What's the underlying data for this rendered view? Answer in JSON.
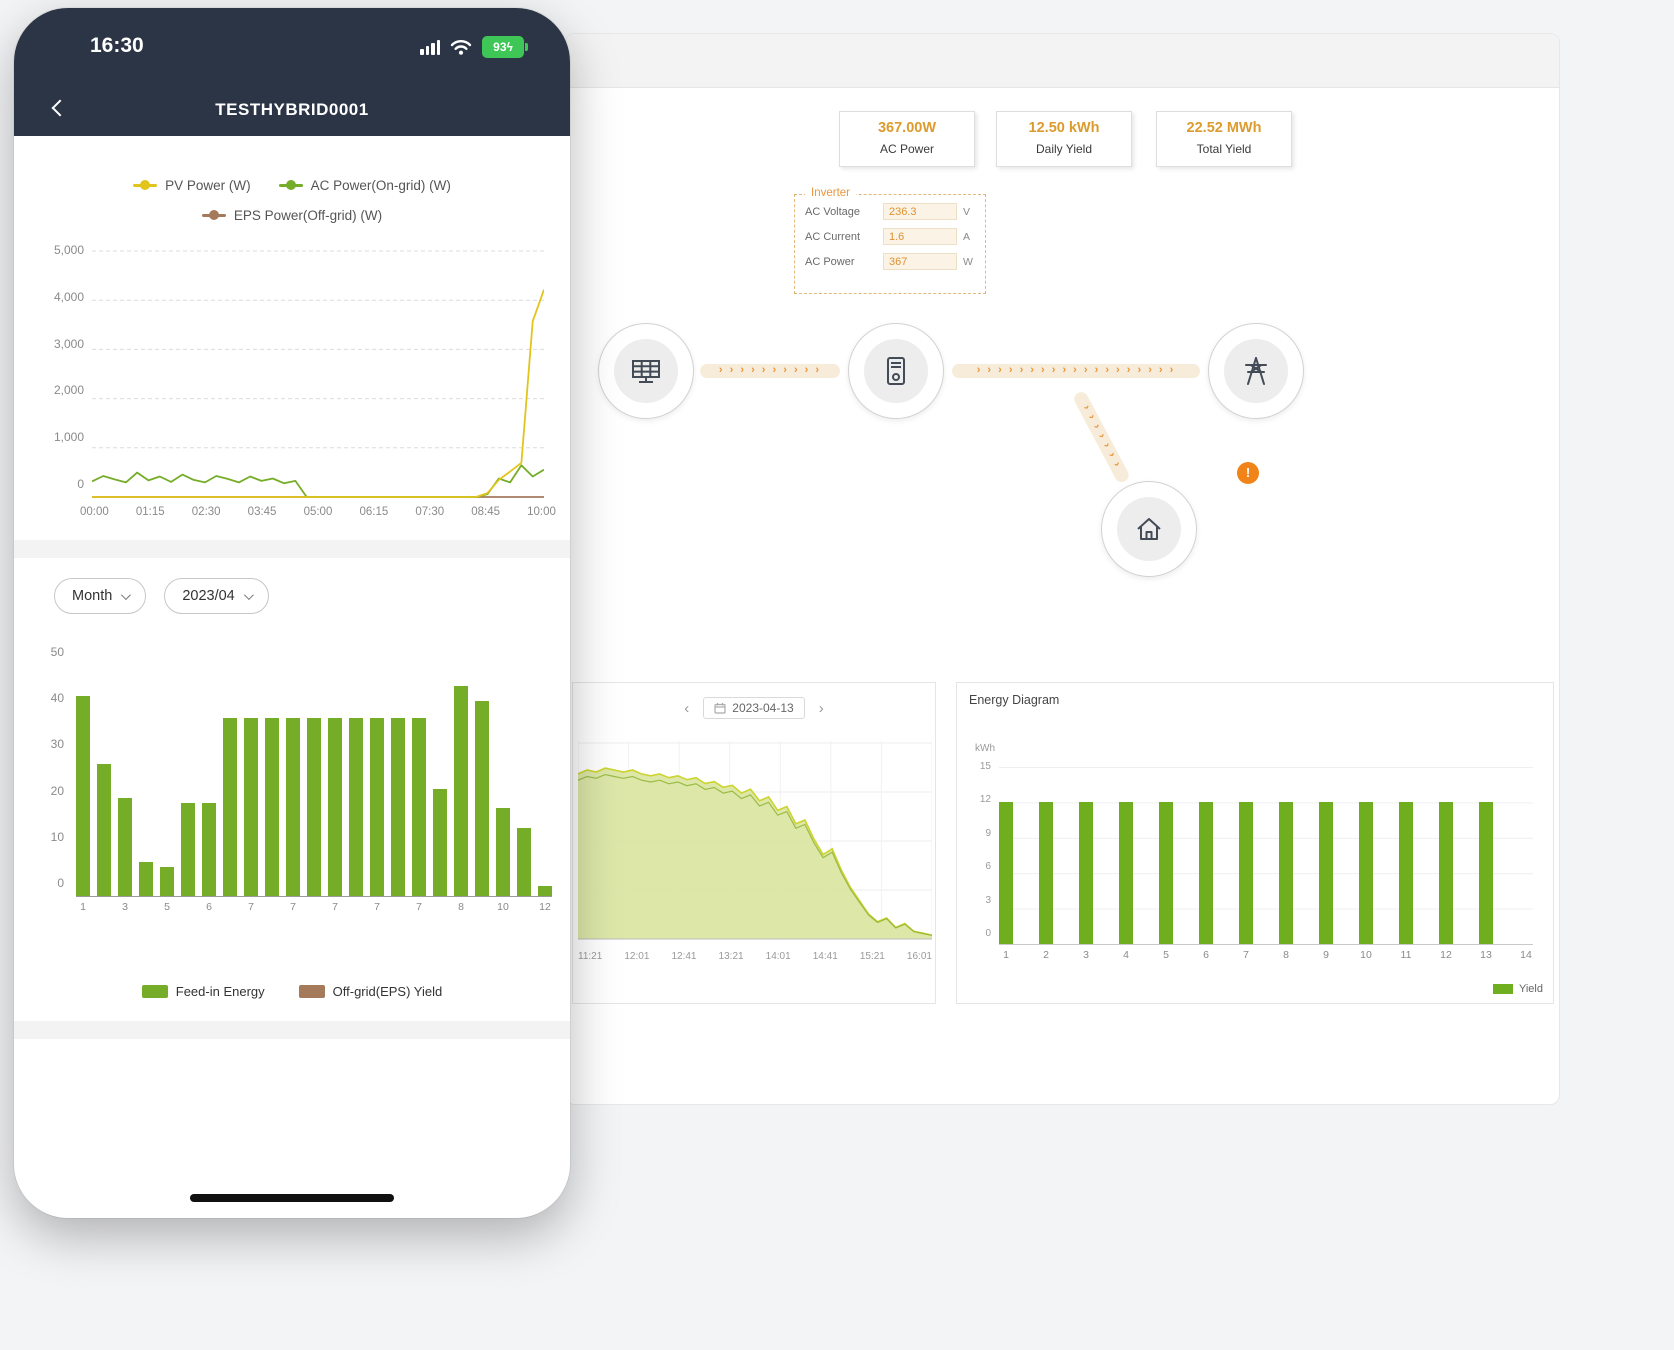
{
  "phone": {
    "status_bar": {
      "time": "16:30",
      "battery_percent": "93",
      "battery_bolt": "ϟ"
    },
    "header": {
      "title": "TESTHYBRID0001"
    },
    "line_chart": {
      "y_max": 5000,
      "y_ticks": [
        "5,000",
        "4,000",
        "3,000",
        "2,000",
        "1,000",
        "0"
      ],
      "x_ticks": [
        "00:00",
        "01:15",
        "02:30",
        "03:45",
        "05:00",
        "06:15",
        "07:30",
        "08:45",
        "10:00"
      ],
      "legend": [
        {
          "label": "PV Power (W)",
          "color": "#e2c51c"
        },
        {
          "label": "AC Power(On-grid) (W)",
          "color": "#76ad28"
        },
        {
          "label": "EPS Power(Off-grid) (W)",
          "color": "#a57a5b"
        }
      ],
      "series": [
        {
          "name": "PV Power (W)",
          "color": "#e2c51c",
          "values": [
            0,
            0,
            0,
            0,
            0,
            0,
            0,
            0,
            0,
            0,
            0,
            0,
            0,
            0,
            0,
            0,
            0,
            0,
            0,
            0,
            0,
            0,
            0,
            0,
            0,
            0,
            0,
            0,
            0,
            0,
            0,
            0,
            0,
            0,
            0,
            80,
            350,
            520,
            700,
            3600,
            4250
          ]
        },
        {
          "name": "AC Power(On-grid) (W)",
          "color": "#76ad28",
          "values": [
            320,
            430,
            360,
            300,
            500,
            340,
            420,
            310,
            460,
            350,
            300,
            430,
            370,
            300,
            420,
            330,
            380,
            280,
            330,
            0,
            0,
            0,
            0,
            0,
            0,
            0,
            0,
            0,
            0,
            0,
            0,
            0,
            0,
            0,
            0,
            60,
            380,
            300,
            650,
            420,
            560
          ]
        },
        {
          "name": "EPS Power(Off-grid) (W)",
          "color": "#a57a5b",
          "values": [
            0,
            0,
            0,
            0,
            0,
            0,
            0,
            0,
            0,
            0,
            0,
            0,
            0,
            0,
            0,
            0,
            0,
            0,
            0,
            0,
            0,
            0,
            0,
            0,
            0,
            0,
            0,
            0,
            0,
            0,
            0,
            0,
            0,
            0,
            0,
            0,
            0,
            0,
            0,
            0,
            0
          ]
        }
      ]
    },
    "filters": {
      "period": "Month",
      "date": "2023/04"
    },
    "bar_chart": {
      "y_max": 50,
      "y_ticks": [
        "50",
        "40",
        "30",
        "20",
        "10",
        "0"
      ],
      "x_labels": [
        "1",
        "3",
        "5",
        "6",
        "7",
        "7",
        "7",
        "7",
        "7",
        "8",
        "10",
        "12"
      ],
      "values": [
        41,
        27,
        20,
        7,
        6,
        19,
        19,
        36.5,
        36.5,
        36.5,
        36.5,
        36.5,
        36.5,
        36.5,
        36.5,
        36.5,
        36.5,
        22,
        43,
        40,
        18,
        14,
        2
      ],
      "bar_color": "#76ad28",
      "legend": [
        {
          "label": "Feed-in Energy",
          "color": "#76ad28"
        },
        {
          "label": "Off-grid(EPS) Yield",
          "color": "#a57a5b"
        }
      ]
    }
  },
  "dashboard": {
    "stats": [
      {
        "value": "367.00W",
        "label": "AC Power"
      },
      {
        "value": "12.50 kWh",
        "label": "Daily Yield"
      },
      {
        "value": "22.52 MWh",
        "label": "Total Yield"
      }
    ],
    "inverter_panel": {
      "title": "Inverter",
      "rows": [
        {
          "label": "AC Voltage",
          "value": "236.3",
          "unit": "V"
        },
        {
          "label": "AC Current",
          "value": "1.6",
          "unit": "A"
        },
        {
          "label": "AC Power",
          "value": "367",
          "unit": "W"
        }
      ]
    },
    "flow": {
      "warning": "!",
      "arrow_char": "›"
    },
    "daily_panel": {
      "prev": "‹",
      "next": "›",
      "date": "2023-04-13",
      "x_ticks": [
        "11:21",
        "12:01",
        "12:41",
        "13:21",
        "14:01",
        "14:41",
        "15:21",
        "16:01"
      ],
      "area": {
        "fill": "#d9e5a1",
        "line_colors": [
          "#ccd42e",
          "#8fb432"
        ],
        "values": [
          86,
          88,
          87,
          89,
          88,
          87,
          88,
          86,
          85,
          86,
          84,
          85,
          83,
          84,
          81,
          82,
          79,
          80,
          76,
          78,
          72,
          74,
          67,
          69,
          60,
          62,
          52,
          44,
          47,
          36,
          27,
          20,
          13,
          9,
          11,
          6,
          8,
          4,
          3,
          2
        ]
      }
    },
    "energy_panel": {
      "title": "Energy Diagram",
      "unit": "kWh",
      "y_max": 15,
      "y_ticks": [
        "15",
        "12",
        "9",
        "6",
        "3",
        "0"
      ],
      "categories": [
        "1",
        "2",
        "3",
        "4",
        "5",
        "6",
        "7",
        "8",
        "9",
        "10",
        "11",
        "12",
        "13",
        "14"
      ],
      "values": [
        12,
        12,
        12,
        12,
        12,
        12,
        12,
        12,
        12,
        12,
        12,
        12,
        12,
        0
      ],
      "bar_color": "#6fae1e",
      "legend": {
        "label": "Yield",
        "color": "#6fae1e"
      }
    }
  }
}
